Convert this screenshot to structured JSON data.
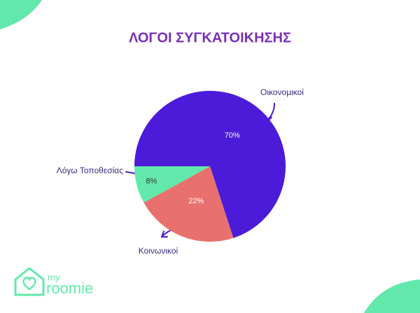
{
  "chart_data": {
    "type": "pie",
    "title": "ΛΟΓΟΙ ΣΥΓΚΑΤΟΙΚΗΣΗΣ",
    "categories": [
      "Οικονομικοί",
      "Κοινωνικοί",
      "Λόγω Τοποθεσίας"
    ],
    "values": [
      70,
      22,
      8
    ],
    "value_labels": [
      "70%",
      "22%",
      "8%"
    ],
    "colors": [
      "#4b1bd9",
      "#e8716f",
      "#62e8aa"
    ]
  },
  "logo": {
    "line1": "my",
    "line2": "roomie"
  }
}
